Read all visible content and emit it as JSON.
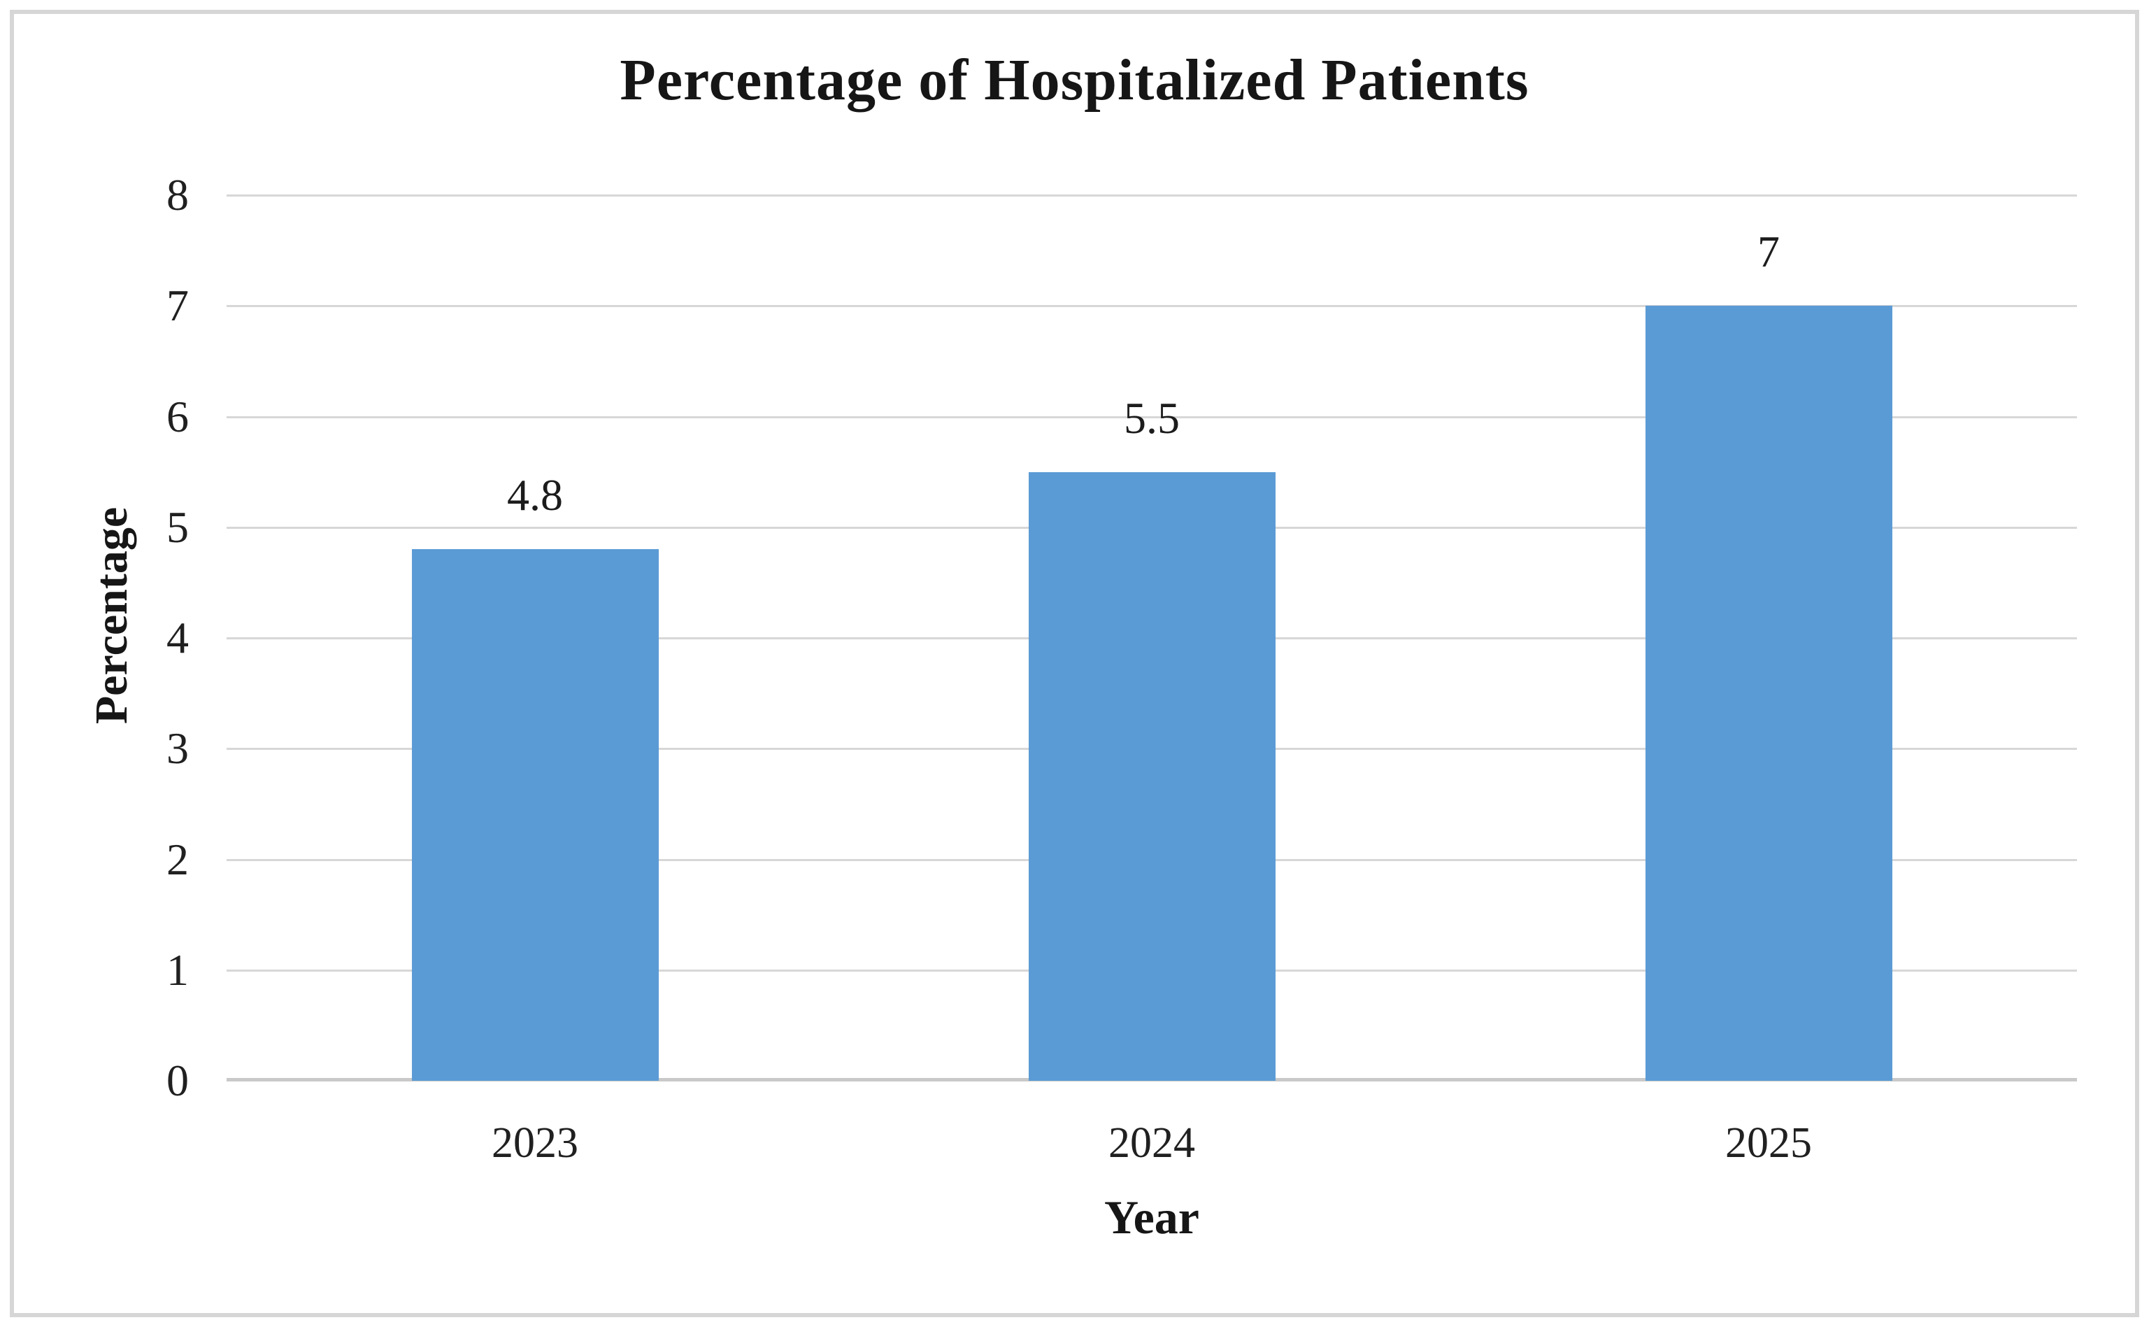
{
  "chart_data": {
    "type": "bar",
    "title": "Percentage of Hospitalized Patients",
    "xlabel": "Year",
    "ylabel": "Percentage",
    "categories": [
      "2023",
      "2024",
      "2025"
    ],
    "values": [
      4.8,
      5.5,
      7
    ],
    "data_labels": [
      "4.8",
      "5.5",
      "7"
    ],
    "ylim": [
      0,
      8
    ],
    "yticks": [
      0,
      1,
      2,
      3,
      4,
      5,
      6,
      7,
      8
    ],
    "grid": "horizontal",
    "legend_position": "none",
    "colors": {
      "bar": "#5B9BD5",
      "gridline": "#D7D7D7",
      "axis_line": "#C9C9C9",
      "text": "#1B1B1B",
      "border": "#D6D6D6",
      "background": "#FFFFFF"
    }
  }
}
